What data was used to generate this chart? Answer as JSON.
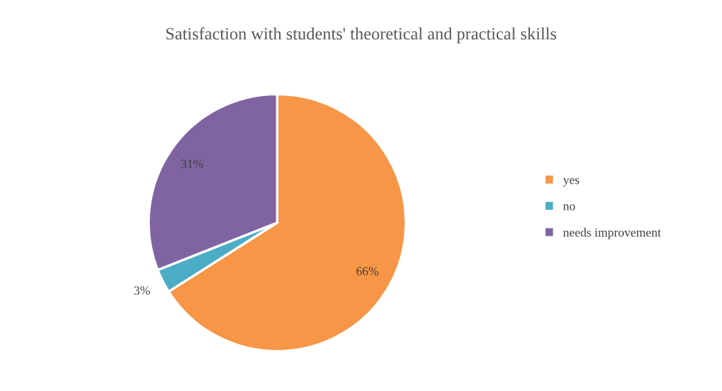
{
  "chart_data": {
    "type": "pie",
    "title": "Satisfaction with students' theoretical and practical skills",
    "categories": [
      "yes",
      "no",
      "needs improvement"
    ],
    "values": [
      66,
      3,
      31
    ],
    "colors": [
      "#f79646",
      "#4bacc6",
      "#8064a2"
    ],
    "value_labels": [
      "66%",
      "3%",
      "31%"
    ],
    "legend": "right"
  }
}
